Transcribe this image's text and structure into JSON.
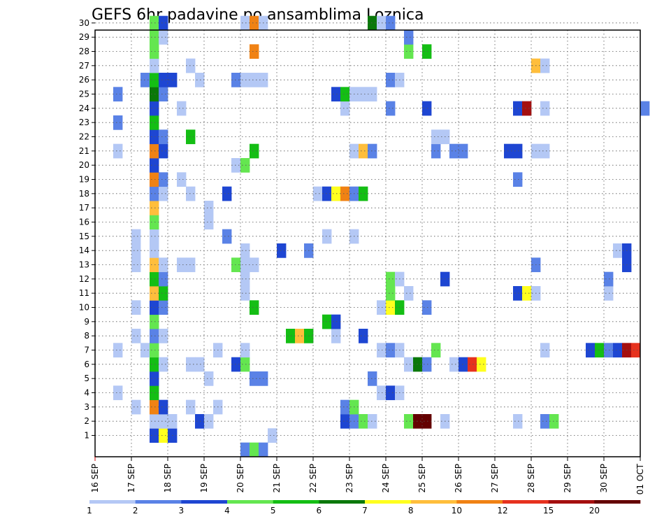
{
  "chart_data": {
    "type": "heatmap",
    "title": "GEFS 6hr padavine po ansamblima Loznica",
    "xlabel": "",
    "ylabel": "",
    "members": [
      1,
      2,
      3,
      4,
      5,
      6,
      7,
      8,
      9,
      10,
      11,
      12,
      13,
      14,
      15,
      16,
      17,
      18,
      19,
      20,
      21,
      22,
      23,
      24,
      25,
      26,
      27,
      28,
      29,
      30
    ],
    "ylim": [
      0,
      30
    ],
    "x_tick_labels": [
      "16 SEP",
      "17 SEP",
      "18 SEP",
      "19 SEP",
      "20 SEP",
      "21 SEP",
      "22 SEP",
      "23 SEP",
      "24 SEP",
      "25 SEP",
      "26 SEP",
      "27 SEP",
      "28 SEP",
      "29 SEP",
      "30 SEP",
      "01 OCT"
    ],
    "x_step_hours": 6,
    "steps_total": 60,
    "colorbar": {
      "thresholds": [
        "1",
        "2",
        "3",
        "4",
        "5",
        "6",
        "7",
        "8",
        "10",
        "12",
        "15",
        "20"
      ],
      "colors": [
        "#b4c8f5",
        "#5a82e6",
        "#1e46d2",
        "#64e650",
        "#14be14",
        "#0a780a",
        "#ffff1e",
        "#ffbe3c",
        "#f08214",
        "#e6321e",
        "#a50f0f",
        "#640000"
      ]
    },
    "cells": [
      {
        "m": 1,
        "t": 6,
        "c": 3
      },
      {
        "m": 1,
        "t": 7,
        "c": 7
      },
      {
        "m": 1,
        "t": 8,
        "c": 3
      },
      {
        "m": 1,
        "t": 19,
        "c": 1
      },
      {
        "m": 2,
        "t": 6,
        "c": 1
      },
      {
        "m": 2,
        "t": 7,
        "c": 1
      },
      {
        "m": 2,
        "t": 8,
        "c": 1
      },
      {
        "m": 2,
        "t": 11,
        "c": 3
      },
      {
        "m": 2,
        "t": 12,
        "c": 1
      },
      {
        "m": 2,
        "t": 27,
        "c": 3
      },
      {
        "m": 2,
        "t": 28,
        "c": 2
      },
      {
        "m": 2,
        "t": 29,
        "c": 4
      },
      {
        "m": 2,
        "t": 30,
        "c": 1
      },
      {
        "m": 2,
        "t": 34,
        "c": 4
      },
      {
        "m": 2,
        "t": 35,
        "c": 12
      },
      {
        "m": 2,
        "t": 36,
        "c": 12
      },
      {
        "m": 2,
        "t": 38,
        "c": 1
      },
      {
        "m": 2,
        "t": 46,
        "c": 1
      },
      {
        "m": 2,
        "t": 49,
        "c": 2
      },
      {
        "m": 2,
        "t": 50,
        "c": 4
      },
      {
        "m": 3,
        "t": 4,
        "c": 1
      },
      {
        "m": 3,
        "t": 6,
        "c": 9
      },
      {
        "m": 3,
        "t": 7,
        "c": 3
      },
      {
        "m": 3,
        "t": 10,
        "c": 1
      },
      {
        "m": 3,
        "t": 13,
        "c": 1
      },
      {
        "m": 3,
        "t": 27,
        "c": 2
      },
      {
        "m": 3,
        "t": 28,
        "c": 4
      },
      {
        "m": 4,
        "t": 2,
        "c": 1
      },
      {
        "m": 4,
        "t": 6,
        "c": 5
      },
      {
        "m": 4,
        "t": 31,
        "c": 1
      },
      {
        "m": 4,
        "t": 32,
        "c": 3
      },
      {
        "m": 4,
        "t": 33,
        "c": 1
      },
      {
        "m": 5,
        "t": 6,
        "c": 3
      },
      {
        "m": 5,
        "t": 12,
        "c": 1
      },
      {
        "m": 5,
        "t": 17,
        "c": 2
      },
      {
        "m": 5,
        "t": 18,
        "c": 2
      },
      {
        "m": 5,
        "t": 30,
        "c": 2
      },
      {
        "m": 6,
        "t": 6,
        "c": 5
      },
      {
        "m": 6,
        "t": 7,
        "c": 1
      },
      {
        "m": 6,
        "t": 10,
        "c": 1
      },
      {
        "m": 6,
        "t": 11,
        "c": 1
      },
      {
        "m": 6,
        "t": 15,
        "c": 3
      },
      {
        "m": 6,
        "t": 16,
        "c": 4
      },
      {
        "m": 6,
        "t": 34,
        "c": 1
      },
      {
        "m": 6,
        "t": 35,
        "c": 6
      },
      {
        "m": 6,
        "t": 36,
        "c": 2
      },
      {
        "m": 6,
        "t": 39,
        "c": 1
      },
      {
        "m": 6,
        "t": 40,
        "c": 3
      },
      {
        "m": 6,
        "t": 41,
        "c": 10
      },
      {
        "m": 6,
        "t": 42,
        "c": 7
      },
      {
        "m": 7,
        "t": 2,
        "c": 1
      },
      {
        "m": 7,
        "t": 5,
        "c": 1
      },
      {
        "m": 7,
        "t": 6,
        "c": 4
      },
      {
        "m": 7,
        "t": 13,
        "c": 1
      },
      {
        "m": 7,
        "t": 16,
        "c": 1
      },
      {
        "m": 7,
        "t": 31,
        "c": 1
      },
      {
        "m": 7,
        "t": 32,
        "c": 2
      },
      {
        "m": 7,
        "t": 33,
        "c": 1
      },
      {
        "m": 7,
        "t": 37,
        "c": 4
      },
      {
        "m": 7,
        "t": 49,
        "c": 1
      },
      {
        "m": 7,
        "t": 54,
        "c": 3
      },
      {
        "m": 7,
        "t": 55,
        "c": 5
      },
      {
        "m": 7,
        "t": 56,
        "c": 2
      },
      {
        "m": 7,
        "t": 57,
        "c": 3
      },
      {
        "m": 7,
        "t": 58,
        "c": 11
      },
      {
        "m": 7,
        "t": 59,
        "c": 10
      },
      {
        "m": 8,
        "t": 4,
        "c": 1
      },
      {
        "m": 8,
        "t": 6,
        "c": 2
      },
      {
        "m": 8,
        "t": 7,
        "c": 1
      },
      {
        "m": 8,
        "t": 21,
        "c": 5
      },
      {
        "m": 8,
        "t": 22,
        "c": 8
      },
      {
        "m": 8,
        "t": 23,
        "c": 5
      },
      {
        "m": 8,
        "t": 26,
        "c": 1
      },
      {
        "m": 8,
        "t": 29,
        "c": 3
      },
      {
        "m": 9,
        "t": 6,
        "c": 4
      },
      {
        "m": 9,
        "t": 25,
        "c": 5
      },
      {
        "m": 9,
        "t": 26,
        "c": 3
      },
      {
        "m": 10,
        "t": 4,
        "c": 1
      },
      {
        "m": 10,
        "t": 6,
        "c": 3
      },
      {
        "m": 10,
        "t": 7,
        "c": 2
      },
      {
        "m": 10,
        "t": 17,
        "c": 5
      },
      {
        "m": 10,
        "t": 31,
        "c": 1
      },
      {
        "m": 10,
        "t": 32,
        "c": 7
      },
      {
        "m": 10,
        "t": 33,
        "c": 5
      },
      {
        "m": 10,
        "t": 36,
        "c": 2
      },
      {
        "m": 11,
        "t": 6,
        "c": 8
      },
      {
        "m": 11,
        "t": 7,
        "c": 5
      },
      {
        "m": 11,
        "t": 16,
        "c": 1
      },
      {
        "m": 11,
        "t": 32,
        "c": 4
      },
      {
        "m": 11,
        "t": 34,
        "c": 1
      },
      {
        "m": 11,
        "t": 46,
        "c": 3
      },
      {
        "m": 11,
        "t": 47,
        "c": 7
      },
      {
        "m": 11,
        "t": 48,
        "c": 1
      },
      {
        "m": 11,
        "t": 56,
        "c": 1
      },
      {
        "m": 12,
        "t": 6,
        "c": 5
      },
      {
        "m": 12,
        "t": 7,
        "c": 2
      },
      {
        "m": 12,
        "t": 16,
        "c": 1
      },
      {
        "m": 12,
        "t": 32,
        "c": 4
      },
      {
        "m": 12,
        "t": 33,
        "c": 1
      },
      {
        "m": 12,
        "t": 38,
        "c": 3
      },
      {
        "m": 12,
        "t": 56,
        "c": 2
      },
      {
        "m": 13,
        "t": 4,
        "c": 1
      },
      {
        "m": 13,
        "t": 6,
        "c": 8
      },
      {
        "m": 13,
        "t": 7,
        "c": 1
      },
      {
        "m": 13,
        "t": 9,
        "c": 1
      },
      {
        "m": 13,
        "t": 10,
        "c": 1
      },
      {
        "m": 13,
        "t": 15,
        "c": 4
      },
      {
        "m": 13,
        "t": 16,
        "c": 1
      },
      {
        "m": 13,
        "t": 17,
        "c": 1
      },
      {
        "m": 13,
        "t": 48,
        "c": 2
      },
      {
        "m": 13,
        "t": 58,
        "c": 3
      },
      {
        "m": 14,
        "t": 4,
        "c": 1
      },
      {
        "m": 14,
        "t": 6,
        "c": 1
      },
      {
        "m": 14,
        "t": 16,
        "c": 1
      },
      {
        "m": 14,
        "t": 20,
        "c": 3
      },
      {
        "m": 14,
        "t": 23,
        "c": 2
      },
      {
        "m": 14,
        "t": 57,
        "c": 1
      },
      {
        "m": 14,
        "t": 58,
        "c": 3
      },
      {
        "m": 15,
        "t": 4,
        "c": 1
      },
      {
        "m": 15,
        "t": 6,
        "c": 1
      },
      {
        "m": 15,
        "t": 14,
        "c": 2
      },
      {
        "m": 15,
        "t": 25,
        "c": 1
      },
      {
        "m": 15,
        "t": 28,
        "c": 1
      },
      {
        "m": 16,
        "t": 6,
        "c": 4
      },
      {
        "m": 16,
        "t": 12,
        "c": 1
      },
      {
        "m": 17,
        "t": 6,
        "c": 8
      },
      {
        "m": 17,
        "t": 12,
        "c": 1
      },
      {
        "m": 18,
        "t": 6,
        "c": 2
      },
      {
        "m": 18,
        "t": 7,
        "c": 1
      },
      {
        "m": 18,
        "t": 10,
        "c": 1
      },
      {
        "m": 18,
        "t": 14,
        "c": 3
      },
      {
        "m": 18,
        "t": 24,
        "c": 1
      },
      {
        "m": 18,
        "t": 25,
        "c": 3
      },
      {
        "m": 18,
        "t": 26,
        "c": 7
      },
      {
        "m": 18,
        "t": 27,
        "c": 9
      },
      {
        "m": 18,
        "t": 28,
        "c": 2
      },
      {
        "m": 18,
        "t": 29,
        "c": 5
      },
      {
        "m": 19,
        "t": 6,
        "c": 9
      },
      {
        "m": 19,
        "t": 7,
        "c": 2
      },
      {
        "m": 19,
        "t": 9,
        "c": 1
      },
      {
        "m": 19,
        "t": 46,
        "c": 2
      },
      {
        "m": 20,
        "t": 6,
        "c": 3
      },
      {
        "m": 20,
        "t": 15,
        "c": 1
      },
      {
        "m": 20,
        "t": 16,
        "c": 4
      },
      {
        "m": 21,
        "t": 2,
        "c": 1
      },
      {
        "m": 21,
        "t": 6,
        "c": 9
      },
      {
        "m": 21,
        "t": 7,
        "c": 3
      },
      {
        "m": 21,
        "t": 17,
        "c": 5
      },
      {
        "m": 21,
        "t": 28,
        "c": 1
      },
      {
        "m": 21,
        "t": 29,
        "c": 8
      },
      {
        "m": 21,
        "t": 30,
        "c": 2
      },
      {
        "m": 21,
        "t": 37,
        "c": 2
      },
      {
        "m": 21,
        "t": 39,
        "c": 2
      },
      {
        "m": 21,
        "t": 40,
        "c": 2
      },
      {
        "m": 21,
        "t": 45,
        "c": 3
      },
      {
        "m": 21,
        "t": 46,
        "c": 3
      },
      {
        "m": 21,
        "t": 48,
        "c": 1
      },
      {
        "m": 21,
        "t": 49,
        "c": 1
      },
      {
        "m": 22,
        "t": 6,
        "c": 3
      },
      {
        "m": 22,
        "t": 7,
        "c": 2
      },
      {
        "m": 22,
        "t": 10,
        "c": 5
      },
      {
        "m": 22,
        "t": 37,
        "c": 1
      },
      {
        "m": 22,
        "t": 38,
        "c": 1
      },
      {
        "m": 23,
        "t": 2,
        "c": 2
      },
      {
        "m": 23,
        "t": 6,
        "c": 5
      },
      {
        "m": 24,
        "t": 6,
        "c": 3
      },
      {
        "m": 24,
        "t": 9,
        "c": 1
      },
      {
        "m": 24,
        "t": 27,
        "c": 1
      },
      {
        "m": 24,
        "t": 32,
        "c": 2
      },
      {
        "m": 24,
        "t": 36,
        "c": 3
      },
      {
        "m": 24,
        "t": 46,
        "c": 3
      },
      {
        "m": 24,
        "t": 47,
        "c": 11
      },
      {
        "m": 24,
        "t": 49,
        "c": 1
      },
      {
        "m": 24,
        "t": 60,
        "c": 2
      },
      {
        "m": 25,
        "t": 2,
        "c": 2
      },
      {
        "m": 25,
        "t": 6,
        "c": 6
      },
      {
        "m": 25,
        "t": 7,
        "c": 2
      },
      {
        "m": 25,
        "t": 26,
        "c": 3
      },
      {
        "m": 25,
        "t": 27,
        "c": 5
      },
      {
        "m": 25,
        "t": 28,
        "c": 1
      },
      {
        "m": 25,
        "t": 29,
        "c": 1
      },
      {
        "m": 25,
        "t": 30,
        "c": 1
      },
      {
        "m": 26,
        "t": 5,
        "c": 2
      },
      {
        "m": 26,
        "t": 6,
        "c": 5
      },
      {
        "m": 26,
        "t": 7,
        "c": 3
      },
      {
        "m": 26,
        "t": 8,
        "c": 3
      },
      {
        "m": 26,
        "t": 11,
        "c": 1
      },
      {
        "m": 26,
        "t": 15,
        "c": 2
      },
      {
        "m": 26,
        "t": 16,
        "c": 1
      },
      {
        "m": 26,
        "t": 17,
        "c": 1
      },
      {
        "m": 26,
        "t": 18,
        "c": 1
      },
      {
        "m": 26,
        "t": 32,
        "c": 2
      },
      {
        "m": 26,
        "t": 33,
        "c": 1
      },
      {
        "m": 27,
        "t": 6,
        "c": 1
      },
      {
        "m": 27,
        "t": 10,
        "c": 1
      },
      {
        "m": 27,
        "t": 48,
        "c": 8
      },
      {
        "m": 27,
        "t": 49,
        "c": 1
      },
      {
        "m": 28,
        "t": 6,
        "c": 4
      },
      {
        "m": 28,
        "t": 17,
        "c": 9
      },
      {
        "m": 28,
        "t": 34,
        "c": 4
      },
      {
        "m": 28,
        "t": 36,
        "c": 5
      },
      {
        "m": 29,
        "t": 6,
        "c": 4
      },
      {
        "m": 29,
        "t": 7,
        "c": 1
      },
      {
        "m": 29,
        "t": 34,
        "c": 2
      },
      {
        "m": 30,
        "t": 6,
        "c": 4
      },
      {
        "m": 30,
        "t": 7,
        "c": 3
      },
      {
        "m": 30,
        "t": 16,
        "c": 1
      },
      {
        "m": 30,
        "t": 17,
        "c": 9
      },
      {
        "m": 30,
        "t": 18,
        "c": 1
      },
      {
        "m": 30,
        "t": 30,
        "c": 6
      },
      {
        "m": 30,
        "t": 31,
        "c": 1
      },
      {
        "m": 30,
        "t": 32,
        "c": 2
      },
      {
        "m": 0,
        "t": 16,
        "c": 2
      },
      {
        "m": 0,
        "t": 17,
        "c": 4
      },
      {
        "m": 0,
        "t": 18,
        "c": 2
      }
    ]
  }
}
